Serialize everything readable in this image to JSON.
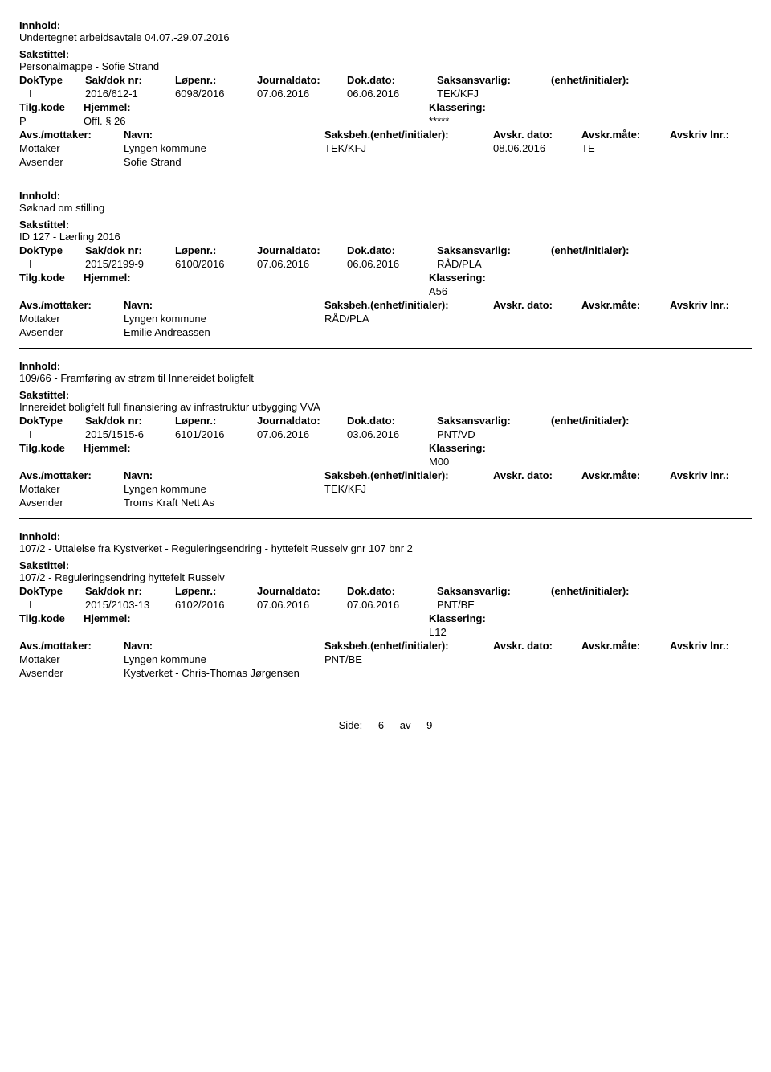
{
  "labels": {
    "innhold": "Innhold:",
    "sakstittel": "Sakstittel:",
    "dokType": "DokType",
    "sakdok": "Sak/dok nr:",
    "lopenr": "Løpenr.:",
    "journaldato": "Journaldato:",
    "dokdato": "Dok.dato:",
    "saksansvarlig": "Saksansvarlig:",
    "enhetinit": "(enhet/initialer):",
    "tilgkode": "Tilg.kode",
    "hjemmel": "Hjemmel:",
    "klassering": "Klassering:",
    "avsmottaker": "Avs./mottaker:",
    "navn": "Navn:",
    "saksbeh": "Saksbeh.(enhet/initialer):",
    "avskrdato": "Avskr. dato:",
    "avskrmate": "Avskr.måte:",
    "avskrivlnr": "Avskriv lnr.:",
    "mottaker": "Mottaker",
    "avsender": "Avsender"
  },
  "entries": [
    {
      "innhold": "Undertegnet arbeidsavtale 04.07.-29.07.2016",
      "sakstittel": "Personalmappe - Sofie Strand",
      "dokType": "I",
      "sakdok": "2016/612-1",
      "lopenr": "6098/2016",
      "journaldato": "07.06.2016",
      "dokdato": "06.06.2016",
      "saksansvarlig": "TEK/KFJ",
      "tilgkode": "P",
      "hjemmel": "Offl. § 26",
      "klassering": "*****",
      "mottaker_navn": "Lyngen kommune",
      "saksbeh": "TEK/KFJ",
      "avskrdato": "08.06.2016",
      "avskrmate": "TE",
      "avsender_navn": "Sofie Strand"
    },
    {
      "innhold": "Søknad om stilling",
      "sakstittel": "ID 127 - Lærling 2016",
      "dokType": "I",
      "sakdok": "2015/2199-9",
      "lopenr": "6100/2016",
      "journaldato": "07.06.2016",
      "dokdato": "06.06.2016",
      "saksansvarlig": "RÅD/PLA",
      "tilgkode": "",
      "hjemmel": "",
      "klassering": "A56",
      "mottaker_navn": "Lyngen kommune",
      "saksbeh": "RÅD/PLA",
      "avskrdato": "",
      "avskrmate": "",
      "avsender_navn": "Emilie Andreassen"
    },
    {
      "innhold": "109/66 - Framføring av strøm til Innereidet boligfelt",
      "sakstittel": "Innereidet boligfelt full finansiering av infrastruktur utbygging VVA",
      "dokType": "I",
      "sakdok": "2015/1515-6",
      "lopenr": "6101/2016",
      "journaldato": "07.06.2016",
      "dokdato": "03.06.2016",
      "saksansvarlig": "PNT/VD",
      "tilgkode": "",
      "hjemmel": "",
      "klassering": "M00",
      "mottaker_navn": "Lyngen kommune",
      "saksbeh": "TEK/KFJ",
      "avskrdato": "",
      "avskrmate": "",
      "avsender_navn": "Troms Kraft Nett As"
    },
    {
      "innhold": "107/2 - Uttalelse fra Kystverket - Reguleringsendring - hyttefelt Russelv gnr 107 bnr 2",
      "sakstittel": "107/2 - Reguleringsendring hyttefelt Russelv",
      "dokType": "I",
      "sakdok": "2015/2103-13",
      "lopenr": "6102/2016",
      "journaldato": "07.06.2016",
      "dokdato": "07.06.2016",
      "saksansvarlig": "PNT/BE",
      "tilgkode": "",
      "hjemmel": "",
      "klassering": "L12",
      "mottaker_navn": "Lyngen kommune",
      "saksbeh": "PNT/BE",
      "avskrdato": "",
      "avskrmate": "",
      "avsender_navn": "Kystverket - Chris-Thomas Jørgensen"
    }
  ],
  "footer": {
    "side": "Side:",
    "page": "6",
    "av": "av",
    "total": "9"
  }
}
